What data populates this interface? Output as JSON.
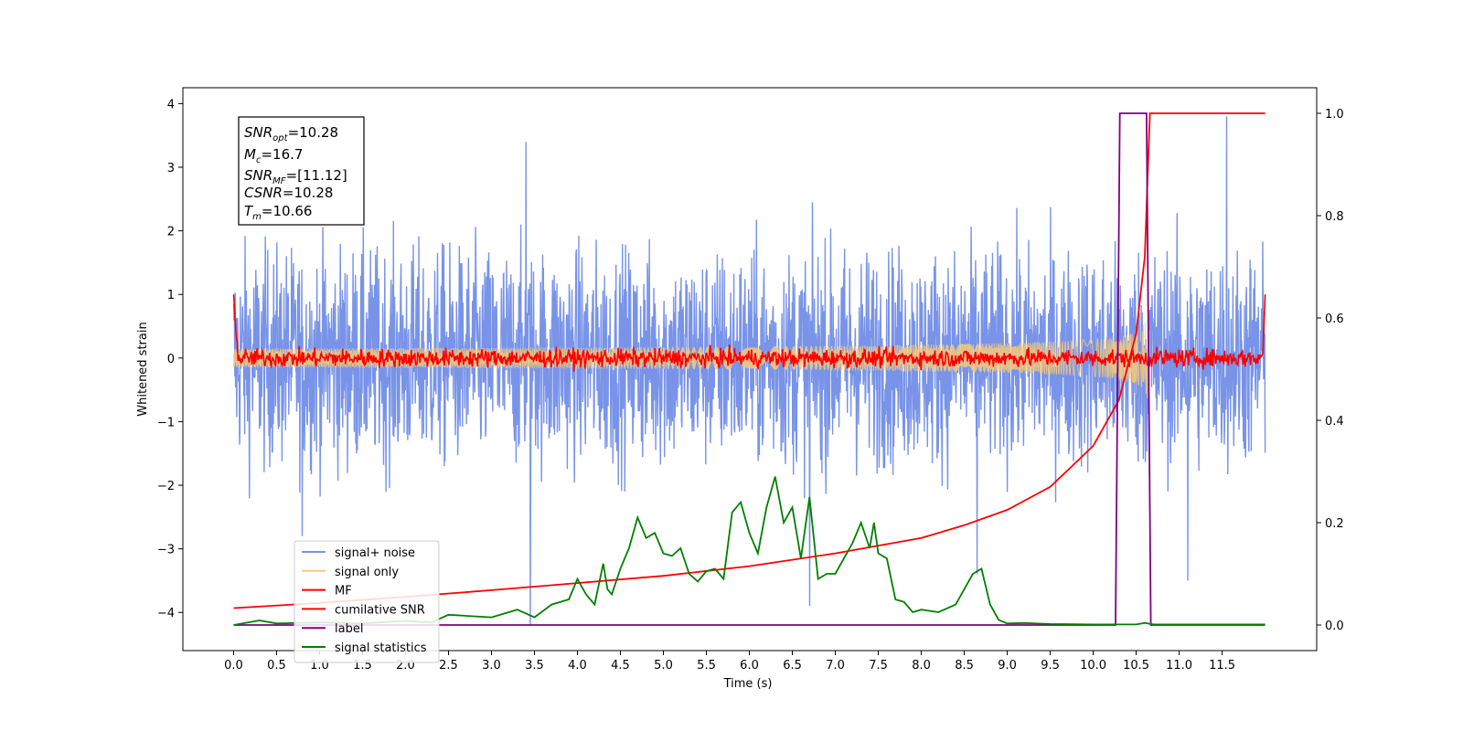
{
  "chart_data": {
    "type": "line",
    "xlabel": "Time (s)",
    "ylabel": "Whitened strain",
    "xlim": [
      -0.59,
      12.6
    ],
    "ylim": [
      -4.6,
      4.25
    ],
    "y2lim": [
      -0.05,
      1.05
    ],
    "x_ticks": [
      "0.0",
      "0.5",
      "1.0",
      "1.5",
      "2.0",
      "2.5",
      "3.0",
      "3.5",
      "4.0",
      "4.5",
      "5.0",
      "5.5",
      "6.0",
      "6.5",
      "7.0",
      "7.5",
      "8.0",
      "8.5",
      "9.0",
      "9.5",
      "10.0",
      "10.5",
      "11.0",
      "11.5"
    ],
    "y_ticks": [
      "−4",
      "−3",
      "−2",
      "−1",
      "0",
      "1",
      "2",
      "3",
      "4"
    ],
    "y2_ticks": [
      "0.0",
      "0.2",
      "0.4",
      "0.6",
      "0.8",
      "1.0"
    ],
    "grid": false,
    "legend_position": "lower-left",
    "annotation": {
      "snr_opt": {
        "symbol": "SNR",
        "sub": "opt",
        "value": "=10.28"
      },
      "mc": {
        "symbol": "M",
        "sub": "c",
        "value": "=16.7"
      },
      "snr_mf": {
        "symbol": "SNR",
        "sub": "MF",
        "value": "=[11.12]"
      },
      "csnr": {
        "symbol": "CSNR",
        "sub": "",
        "value": "=10.28"
      },
      "tm": {
        "symbol": "T",
        "sub": "m",
        "value": "=10.66"
      }
    },
    "series": [
      {
        "name": "signal+ noise",
        "color": "#7893e8",
        "axis": "left",
        "kind": "noise",
        "x_range": [
          0.0,
          12.0
        ],
        "envelope": [
          -2.6,
          2.9
        ],
        "peaks": [
          [
            3.4,
            3.4
          ],
          [
            3.45,
            -4.2
          ],
          [
            6.7,
            -3.9
          ],
          [
            8.65,
            -3.4
          ],
          [
            11.55,
            3.8
          ],
          [
            11.1,
            -3.5
          ],
          [
            0.8,
            -2.8
          ]
        ]
      },
      {
        "name": "signal only",
        "color": "#f5c97a",
        "axis": "left",
        "kind": "chirp",
        "x_range": [
          0.0,
          10.66
        ],
        "amplitude_end": 1.3
      },
      {
        "name": "MF",
        "color": "#ff0000",
        "axis": "left",
        "kind": "mf",
        "x_range": [
          0.0,
          12.0
        ],
        "start_value": 1.0,
        "end_value": 1.0,
        "noise_amplitude": 0.12
      },
      {
        "name": "cumilative SNR",
        "color": "#ff0000",
        "axis": "right",
        "x": [
          0.0,
          1.0,
          2.0,
          3.0,
          4.0,
          5.0,
          6.0,
          7.0,
          8.0,
          8.5,
          9.0,
          9.5,
          10.0,
          10.3,
          10.5,
          10.6,
          10.66,
          10.7,
          12.0
        ],
        "values": [
          0.033,
          0.043,
          0.055,
          0.068,
          0.082,
          0.096,
          0.115,
          0.14,
          0.17,
          0.195,
          0.225,
          0.27,
          0.35,
          0.44,
          0.57,
          0.72,
          1.0,
          1.0,
          1.0
        ]
      },
      {
        "name": "label",
        "color": "#800080",
        "axis": "right",
        "x": [
          0.0,
          10.26,
          10.31,
          10.62,
          10.67,
          12.0
        ],
        "values": [
          0,
          0,
          1,
          1,
          0,
          0
        ]
      },
      {
        "name": "signal statistics",
        "color": "#008000",
        "axis": "right",
        "x": [
          0.0,
          0.3,
          0.5,
          1.0,
          1.5,
          2.0,
          2.3,
          2.5,
          3.0,
          3.3,
          3.5,
          3.7,
          3.9,
          4.0,
          4.1,
          4.2,
          4.3,
          4.35,
          4.4,
          4.5,
          4.6,
          4.7,
          4.8,
          4.9,
          5.0,
          5.1,
          5.2,
          5.3,
          5.4,
          5.5,
          5.6,
          5.7,
          5.8,
          5.9,
          6.0,
          6.1,
          6.2,
          6.3,
          6.4,
          6.5,
          6.6,
          6.7,
          6.8,
          6.9,
          7.0,
          7.2,
          7.3,
          7.4,
          7.45,
          7.5,
          7.6,
          7.7,
          7.8,
          7.9,
          8.0,
          8.2,
          8.4,
          8.6,
          8.7,
          8.8,
          8.9,
          9.0,
          9.2,
          9.5,
          10.0,
          10.4,
          10.5,
          10.6,
          10.7,
          12.0
        ],
        "values": [
          0.0,
          0.009,
          0.003,
          0.005,
          0.003,
          0.008,
          0.005,
          0.02,
          0.015,
          0.03,
          0.015,
          0.04,
          0.05,
          0.09,
          0.06,
          0.04,
          0.12,
          0.07,
          0.06,
          0.11,
          0.15,
          0.21,
          0.17,
          0.18,
          0.14,
          0.135,
          0.15,
          0.1,
          0.085,
          0.105,
          0.11,
          0.09,
          0.22,
          0.24,
          0.18,
          0.14,
          0.23,
          0.29,
          0.2,
          0.23,
          0.13,
          0.25,
          0.09,
          0.1,
          0.1,
          0.16,
          0.2,
          0.15,
          0.2,
          0.14,
          0.13,
          0.05,
          0.045,
          0.025,
          0.03,
          0.025,
          0.04,
          0.1,
          0.11,
          0.04,
          0.01,
          0.003,
          0.004,
          0.002,
          0.001,
          0.001,
          0.001,
          0.004,
          0.001,
          0.001
        ]
      }
    ]
  }
}
